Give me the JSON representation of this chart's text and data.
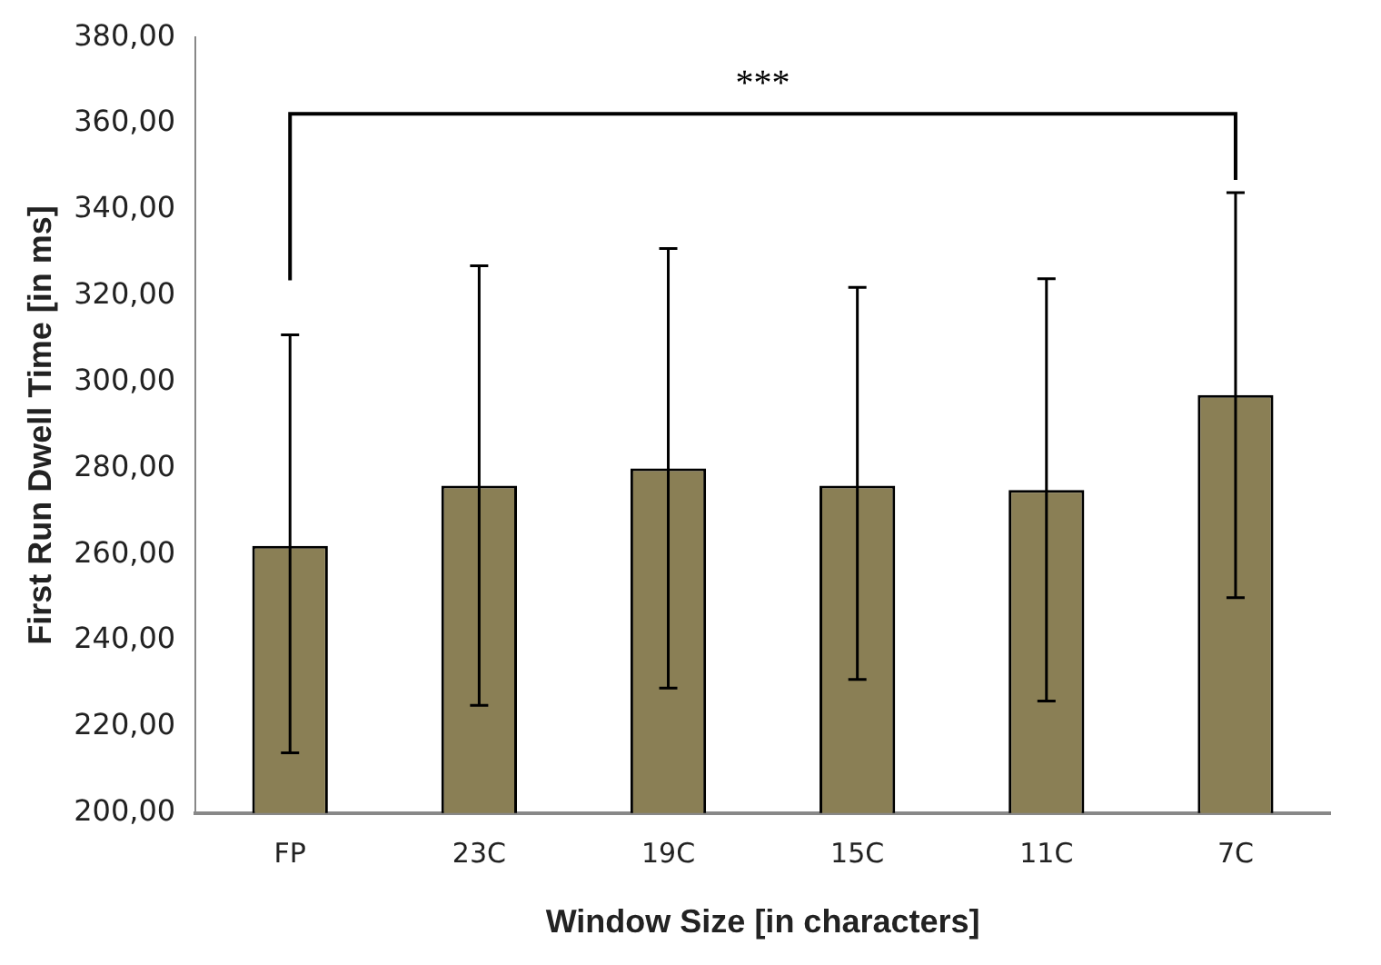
{
  "chart_data": {
    "type": "bar",
    "xlabel": "Window Size [in characters]",
    "ylabel": "First Run Dwell Time [in ms]",
    "categories": [
      "FP",
      "23C",
      "19C",
      "15C",
      "11C",
      "7C"
    ],
    "values": [
      262,
      276,
      280,
      276,
      275,
      297
    ],
    "errors": [
      [
        214,
        311
      ],
      [
        225,
        327
      ],
      [
        229,
        331
      ],
      [
        231,
        322
      ],
      [
        226,
        324
      ],
      [
        250,
        344
      ]
    ],
    "color": "#8a7f55",
    "ylim": [
      200,
      380
    ],
    "yticks": [
      {
        "value": 200,
        "label": "200,00"
      },
      {
        "value": 220,
        "label": "220,00"
      },
      {
        "value": 240,
        "label": "240,00"
      },
      {
        "value": 260,
        "label": "260,00"
      },
      {
        "value": 280,
        "label": "280,00"
      },
      {
        "value": 300,
        "label": "300,00"
      },
      {
        "value": 320,
        "label": "320,00"
      },
      {
        "value": 340,
        "label": "340,00"
      },
      {
        "value": 360,
        "label": "360,00"
      },
      {
        "value": 380,
        "label": "380,00"
      }
    ],
    "annotations": [
      "***"
    ],
    "grid": false,
    "legend": false
  }
}
